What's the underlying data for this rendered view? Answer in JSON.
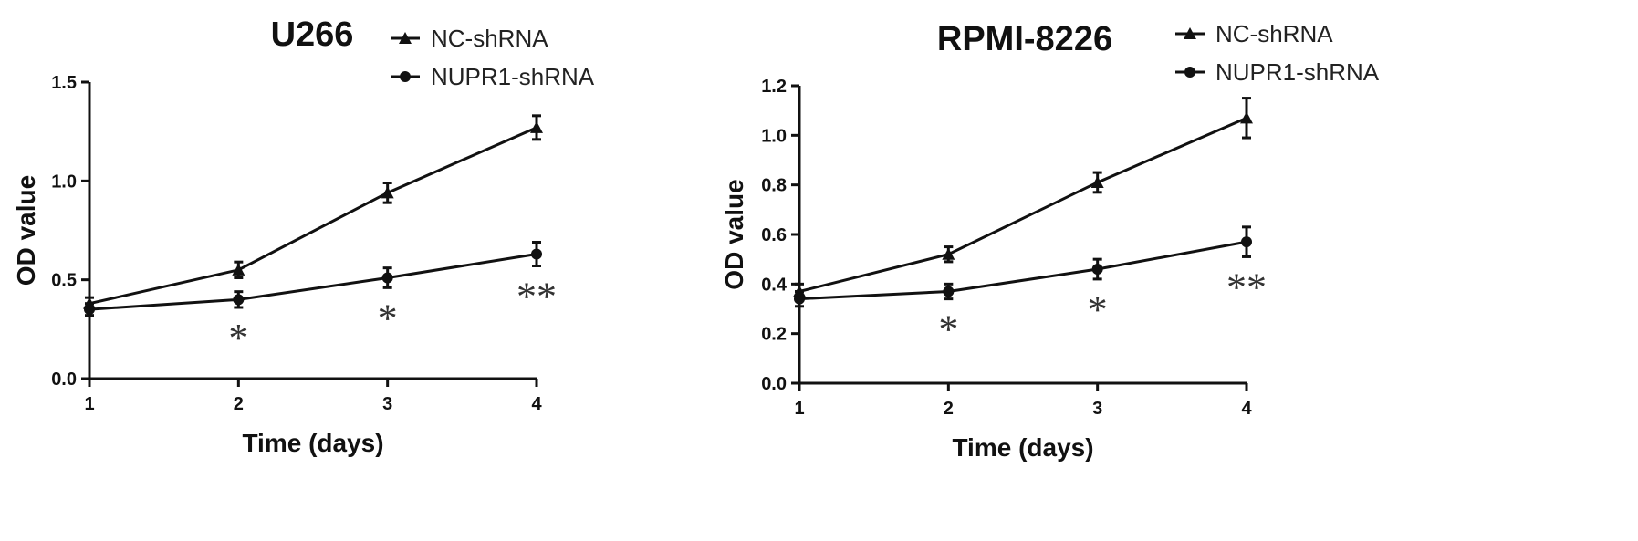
{
  "chart_data": [
    {
      "type": "line",
      "title": "U266",
      "xlabel": "Time (days)",
      "ylabel": "OD value",
      "x": [
        1,
        2,
        3,
        4
      ],
      "xlim": [
        1,
        4
      ],
      "ylim": [
        0.0,
        1.5
      ],
      "xticks": [
        "1",
        "2",
        "3",
        "4"
      ],
      "yticks": [
        "0.0",
        "0.5",
        "1.0",
        "1.5"
      ],
      "legend_position": "top-right",
      "grid": false,
      "series": [
        {
          "name": "NC-shRNA",
          "marker": "triangle",
          "values": [
            0.38,
            0.55,
            0.94,
            1.27
          ],
          "errors": [
            0.03,
            0.04,
            0.05,
            0.06
          ]
        },
        {
          "name": "NUPR1-shRNA",
          "marker": "circle",
          "values": [
            0.35,
            0.4,
            0.51,
            0.63
          ],
          "errors": [
            0.03,
            0.04,
            0.05,
            0.06
          ]
        }
      ],
      "annotations": [
        {
          "x": 2,
          "text": "*"
        },
        {
          "x": 3,
          "text": "*"
        },
        {
          "x": 4,
          "text": "**"
        }
      ]
    },
    {
      "type": "line",
      "title": "RPMI-8226",
      "xlabel": "Time (days)",
      "ylabel": "OD value",
      "x": [
        1,
        2,
        3,
        4
      ],
      "xlim": [
        1,
        4
      ],
      "ylim": [
        0.0,
        1.2
      ],
      "xticks": [
        "1",
        "2",
        "3",
        "4"
      ],
      "yticks": [
        "0.0",
        "0.2",
        "0.4",
        "0.6",
        "0.8",
        "1.0",
        "1.2"
      ],
      "legend_position": "top-right",
      "grid": false,
      "series": [
        {
          "name": "NC-shRNA",
          "marker": "triangle",
          "values": [
            0.37,
            0.52,
            0.81,
            1.07
          ],
          "errors": [
            0.03,
            0.03,
            0.04,
            0.08
          ]
        },
        {
          "name": "NUPR1-shRNA",
          "marker": "circle",
          "values": [
            0.34,
            0.37,
            0.46,
            0.57
          ],
          "errors": [
            0.03,
            0.03,
            0.04,
            0.06
          ]
        }
      ],
      "annotations": [
        {
          "x": 2,
          "text": "*"
        },
        {
          "x": 3,
          "text": "*"
        },
        {
          "x": 4,
          "text": "**"
        }
      ]
    }
  ]
}
